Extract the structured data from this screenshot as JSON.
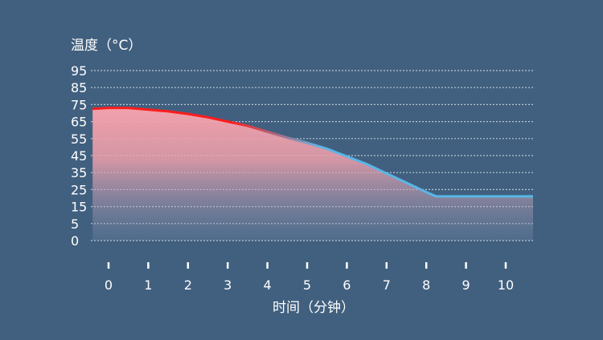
{
  "chart_data": {
    "type": "area",
    "title": "",
    "ylabel": "温度（°C）",
    "xlabel": "时间（分钟）",
    "y_ticks": [
      0,
      5,
      15,
      25,
      35,
      45,
      55,
      65,
      75,
      85,
      95
    ],
    "x_ticks": [
      0,
      1,
      2,
      3,
      4,
      5,
      6,
      7,
      8,
      9,
      10
    ],
    "xlim": [
      -0.4,
      10.7
    ],
    "grid": true,
    "series": [
      {
        "x": [
          -0.4,
          0,
          0.5,
          1,
          1.5,
          2,
          2.5,
          3,
          3.5,
          4,
          4.5,
          5,
          5.5,
          6,
          6.5,
          7,
          7.5,
          8,
          8.25,
          9,
          10,
          10.7
        ],
        "y": [
          72.5,
          73,
          73,
          72,
          71,
          69.5,
          67.5,
          65,
          62.5,
          59,
          55.5,
          52.5,
          49,
          44.5,
          40,
          34.5,
          29,
          23.5,
          21,
          21,
          21,
          21
        ]
      }
    ],
    "colors": {
      "hot": "#ff1c1c",
      "cool": "#5ab6e8",
      "fill_top": "#f7a3ad",
      "grid": "#b8c7d6",
      "text": "#ffffff"
    }
  }
}
